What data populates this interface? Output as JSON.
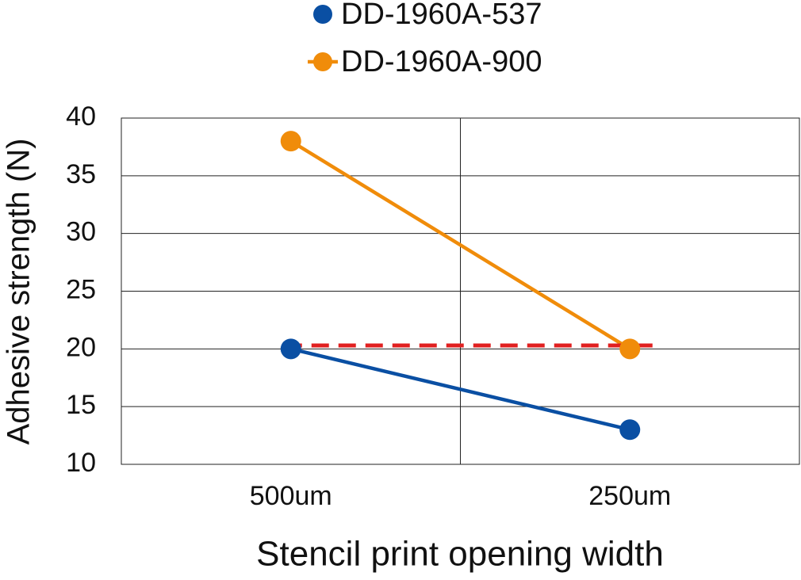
{
  "chart_data": {
    "type": "line",
    "x_label": "Stencil print opening width",
    "y_label": "Adhesive strength (N)",
    "categories": [
      "500um",
      "250um"
    ],
    "series": [
      {
        "name": "DD-1960A-537",
        "color": "#0a4fa3",
        "values": [
          20,
          13
        ]
      },
      {
        "name": "DD-1960A-900",
        "color": "#f08c0a",
        "values": [
          38,
          20
        ]
      }
    ],
    "reference_line": {
      "value": 20.3,
      "color": "#e02020"
    },
    "ylim": [
      10,
      40
    ],
    "yticks": [
      10,
      15,
      20,
      25,
      30,
      35,
      40
    ],
    "grid": true,
    "legend": "top"
  }
}
